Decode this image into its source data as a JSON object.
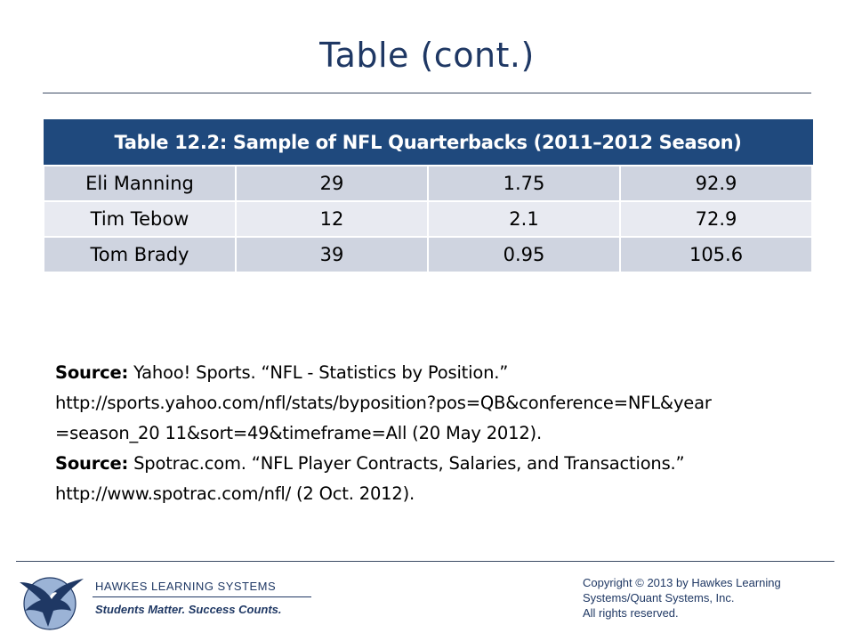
{
  "slide": {
    "title": "Table (cont.)"
  },
  "table": {
    "caption": "Table 12.2: Sample of NFL Quarterbacks (2011–2012 Season)",
    "rows": [
      [
        "Eli Manning",
        "29",
        "1.75",
        "92.9"
      ],
      [
        "Tim Tebow",
        "12",
        "2.1",
        "72.9"
      ],
      [
        "Tom Brady",
        "39",
        "0.95",
        "105.6"
      ]
    ]
  },
  "sources": [
    {
      "label": "Source:",
      "line1": " Yahoo! Sports. “NFL - Statistics by Position.”",
      "line2": "http://sports.yahoo.com/nfl/stats/byposition?pos=QB&conference=NFL&year",
      "line3": "=season_20 11&sort=49&timeframe=All (20 May 2012)."
    },
    {
      "label": "Source:",
      "line1": " Spotrac.com. “NFL Player Contracts, Salaries, and Transactions.”",
      "line2": "http://www.spotrac.com/nfl/ (2 Oct. 2012)."
    }
  ],
  "footer": {
    "company": "HAWKES LEARNING SYSTEMS",
    "tagline": "Students Matter. Success Counts.",
    "copyright": [
      "Copyright © 2013 by Hawkes Learning",
      "Systems/Quant Systems, Inc.",
      "All rights reserved."
    ],
    "logo_icon": "eagle-logo-icon"
  },
  "colors": {
    "title": "#1f3864",
    "table_header": "#1f497d",
    "row_dark": "#cfd4e0",
    "row_light": "#e8eaf1"
  }
}
